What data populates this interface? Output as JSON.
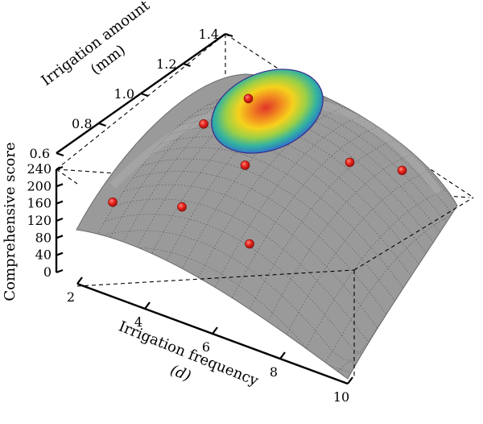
{
  "chart_data": {
    "type": "surface-3d",
    "zlabel": "Comprehensive score",
    "ylabel": "Irrigation amount",
    "ylabel_unit": "(mm)",
    "xlabel": "Irrigation frequency",
    "xlabel_unit": "(d)",
    "x_ticks": [
      "2",
      "4",
      "6",
      "8",
      "10"
    ],
    "y_ticks": [
      "0.6",
      "0.8",
      "1.0",
      "1.2",
      "1.4"
    ],
    "z_ticks": [
      "0",
      "40",
      "80",
      "120",
      "160",
      "200",
      "240"
    ],
    "xlim": [
      2,
      10
    ],
    "ylim": [
      0.6,
      1.4
    ],
    "zlim": [
      0,
      240
    ],
    "grid": true,
    "surface_color": "#9a9a9a",
    "point_color": "#e8251e",
    "peak_colormap": [
      "#3b2a8c",
      "#2f74c9",
      "#33b3a0",
      "#9cd046",
      "#f6d21d",
      "#f28a20",
      "#e0342a"
    ],
    "points": [
      {
        "x": 2.5,
        "y": 0.7,
        "z": 150
      },
      {
        "x": 4.0,
        "y": 0.8,
        "z": 145
      },
      {
        "x": 4.5,
        "y": 1.05,
        "z": 160
      },
      {
        "x": 3.0,
        "y": 1.1,
        "z": 190
      },
      {
        "x": 3.5,
        "y": 1.25,
        "z": 205
      },
      {
        "x": 6.0,
        "y": 0.8,
        "z": 120
      },
      {
        "x": 6.5,
        "y": 1.25,
        "z": 150
      },
      {
        "x": 7.5,
        "y": 1.35,
        "z": 125
      }
    ]
  }
}
